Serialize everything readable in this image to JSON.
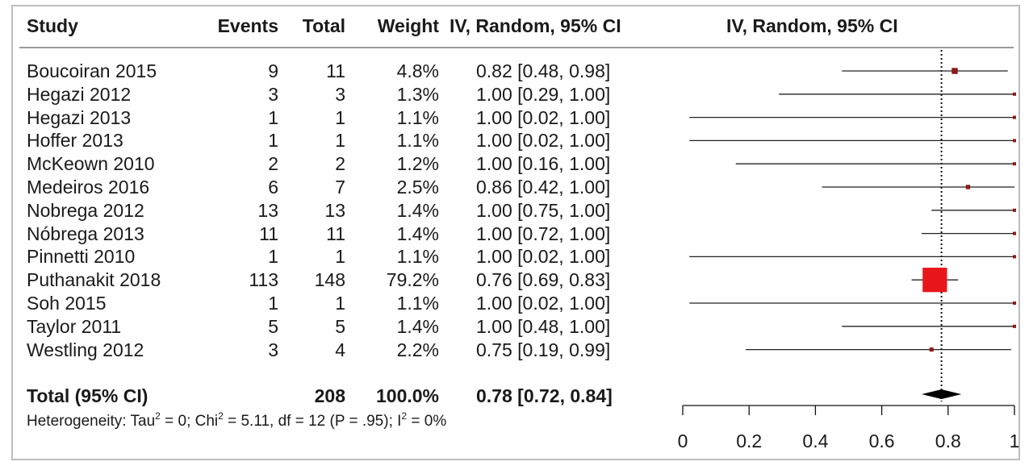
{
  "table": {
    "headers": {
      "study": "Study",
      "events": "Events",
      "total": "Total",
      "weight": "Weight",
      "ci": "IV, Random, 95% CI",
      "plot": "IV, Random, 95% CI"
    },
    "total_row": {
      "label": "Total (95% CI)",
      "total": "208",
      "weight": "100.0%",
      "ci": "0.78 [0.72, 0.84]"
    },
    "heterogeneity": {
      "prefix": "Heterogeneity: Tau",
      "tau_exp": "2",
      "mid": " = 0; Chi",
      "chi_exp": "2",
      "mid2": " = 5.11, df = 12 (P = .95); I",
      "i_exp": "2",
      "suffix": " = 0%"
    }
  },
  "chart_data": {
    "type": "forest",
    "xlim": [
      0,
      1
    ],
    "ticks": [
      "0",
      "0.2",
      "0.4",
      "0.6",
      "0.8",
      "1"
    ],
    "reference_line": 0.78,
    "studies": [
      {
        "study": "Boucoiran 2015",
        "events": "9",
        "total": "11",
        "weight": "4.8%",
        "ci": "0.82 [0.48, 0.98]",
        "est": 0.82,
        "lo": 0.48,
        "hi": 0.98,
        "w": 4.8
      },
      {
        "study": "Hegazi 2012",
        "events": "3",
        "total": "3",
        "weight": "1.3%",
        "ci": "1.00 [0.29, 1.00]",
        "est": 1.0,
        "lo": 0.29,
        "hi": 1.0,
        "w": 1.3
      },
      {
        "study": "Hegazi 2013",
        "events": "1",
        "total": "1",
        "weight": "1.1%",
        "ci": "1.00 [0.02, 1.00]",
        "est": 1.0,
        "lo": 0.02,
        "hi": 1.0,
        "w": 1.1
      },
      {
        "study": "Hoffer 2013",
        "events": "1",
        "total": "1",
        "weight": "1.1%",
        "ci": "1.00 [0.02, 1.00]",
        "est": 1.0,
        "lo": 0.02,
        "hi": 1.0,
        "w": 1.1
      },
      {
        "study": "McKeown 2010",
        "events": "2",
        "total": "2",
        "weight": "1.2%",
        "ci": "1.00 [0.16, 1.00]",
        "est": 1.0,
        "lo": 0.16,
        "hi": 1.0,
        "w": 1.2
      },
      {
        "study": "Medeiros 2016",
        "events": "6",
        "total": "7",
        "weight": "2.5%",
        "ci": "0.86 [0.42, 1.00]",
        "est": 0.86,
        "lo": 0.42,
        "hi": 1.0,
        "w": 2.5
      },
      {
        "study": "Nobrega 2012",
        "events": "13",
        "total": "13",
        "weight": "1.4%",
        "ci": "1.00 [0.75, 1.00]",
        "est": 1.0,
        "lo": 0.75,
        "hi": 1.0,
        "w": 1.4
      },
      {
        "study": "Nóbrega 2013",
        "events": "11",
        "total": "11",
        "weight": "1.4%",
        "ci": "1.00 [0.72, 1.00]",
        "est": 1.0,
        "lo": 0.72,
        "hi": 1.0,
        "w": 1.4
      },
      {
        "study": "Pinnetti 2010",
        "events": "1",
        "total": "1",
        "weight": "1.1%",
        "ci": "1.00 [0.02, 1.00]",
        "est": 1.0,
        "lo": 0.02,
        "hi": 1.0,
        "w": 1.1
      },
      {
        "study": "Puthanakit 2018",
        "events": "113",
        "total": "148",
        "weight": "79.2%",
        "ci": "0.76 [0.69, 0.83]",
        "est": 0.76,
        "lo": 0.69,
        "hi": 0.83,
        "w": 79.2
      },
      {
        "study": "Soh 2015",
        "events": "1",
        "total": "1",
        "weight": "1.1%",
        "ci": "1.00 [0.02, 1.00]",
        "est": 1.0,
        "lo": 0.02,
        "hi": 1.0,
        "w": 1.1
      },
      {
        "study": "Taylor 2011",
        "events": "5",
        "total": "5",
        "weight": "1.4%",
        "ci": "1.00 [0.48, 1.00]",
        "est": 1.0,
        "lo": 0.48,
        "hi": 1.0,
        "w": 1.4
      },
      {
        "study": "Westling 2012",
        "events": "3",
        "total": "4",
        "weight": "2.2%",
        "ci": "0.75 [0.19, 0.99]",
        "est": 0.75,
        "lo": 0.19,
        "hi": 0.99,
        "w": 2.2
      }
    ],
    "pooled": {
      "est": 0.78,
      "lo": 0.72,
      "hi": 0.84
    },
    "colors": {
      "big_box": "#e8161b",
      "small_box": "#8b1a1a",
      "line": "#222222"
    }
  }
}
